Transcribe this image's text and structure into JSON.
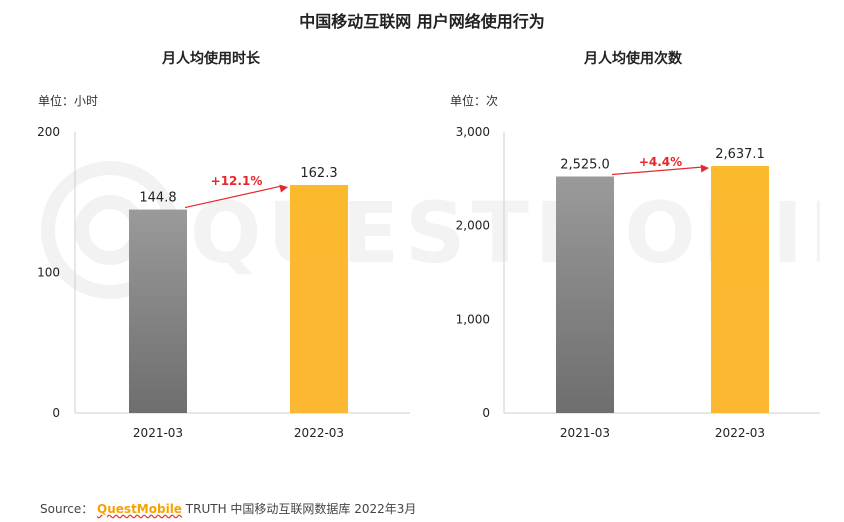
{
  "page_title": "中国移动互联网 用户网络使用行为",
  "source": {
    "label": "Source：",
    "brand": "QuestMobile",
    "text": "TRUTH 中国移动互联网数据库 2022年3月"
  },
  "watermark_text": "QUESTMOBILE",
  "colors": {
    "bar_2021": "#8a8a8a",
    "bar_2022": "#fbb42c",
    "growth_arrow": "#e8262d"
  },
  "chart_data": [
    {
      "type": "bar",
      "title": "月人均使用时长",
      "unit_label": "单位：小时",
      "categories": [
        "2021-03",
        "2022-03"
      ],
      "values": [
        144.8,
        162.3
      ],
      "data_labels": [
        "144.8",
        "162.3"
      ],
      "ylim": [
        0,
        200
      ],
      "yticks": [
        0,
        100,
        200
      ],
      "ytick_labels": [
        "0",
        "100",
        "200"
      ],
      "growth_label": "+12.1%",
      "grid": false
    },
    {
      "type": "bar",
      "title": "月人均使用次数",
      "unit_label": "单位：次",
      "categories": [
        "2021-03",
        "2022-03"
      ],
      "values": [
        2525.0,
        2637.1
      ],
      "data_labels": [
        "2,525.0",
        "2,637.1"
      ],
      "ylim": [
        0,
        3000
      ],
      "yticks": [
        0,
        1000,
        2000,
        3000
      ],
      "ytick_labels": [
        "0",
        "1,000",
        "2,000",
        "3,000"
      ],
      "growth_label": "+4.4%",
      "grid": false
    }
  ]
}
